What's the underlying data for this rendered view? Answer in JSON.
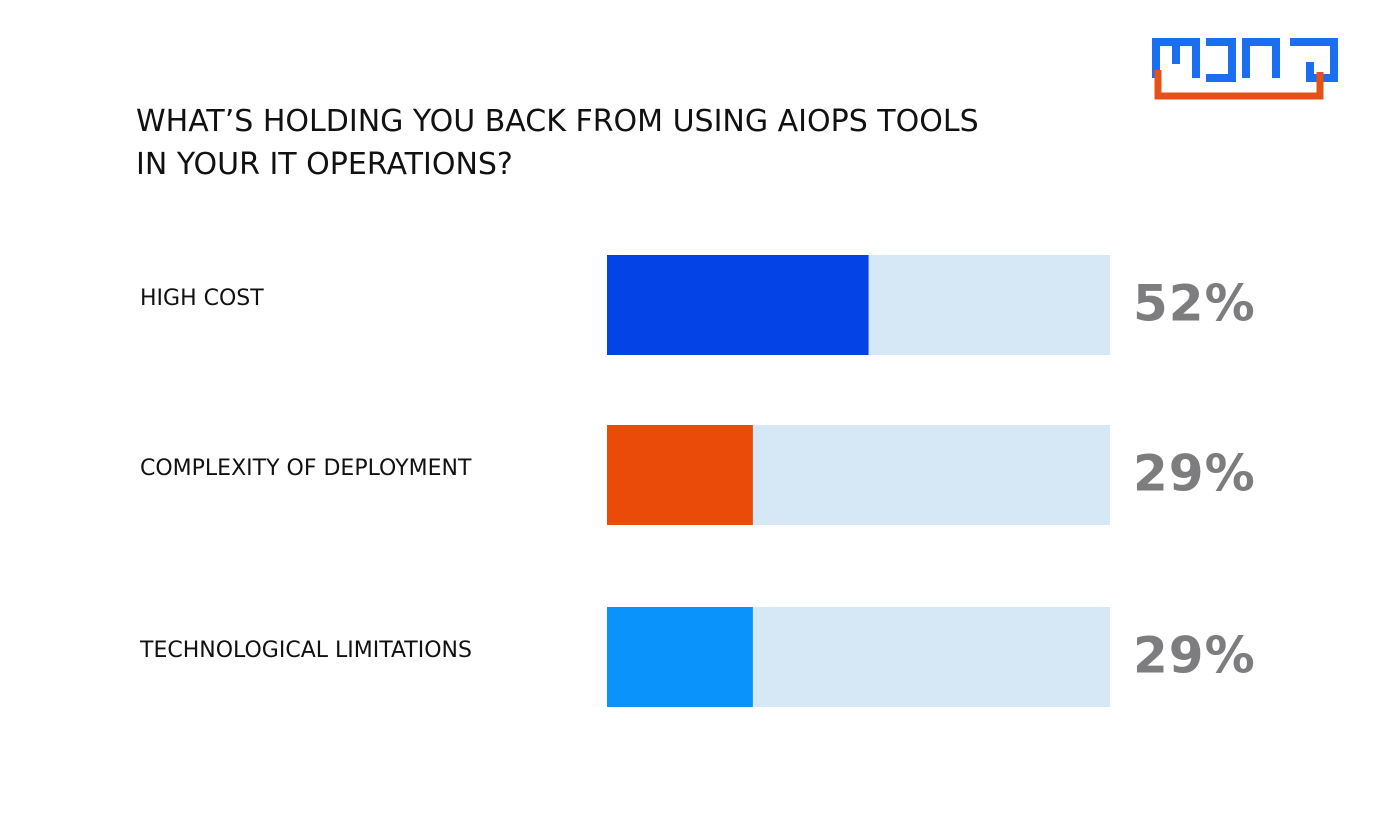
{
  "title_lines": [
    "WHAT’S HOLDING YOU BACK FROM USING AIOPS TOOLS",
    "IN YOUR IT OPERATIONS?"
  ],
  "logo": {
    "text": "MONO",
    "color_primary": "#1a6ef0",
    "color_accent": "#e8501a"
  },
  "colors": {
    "track": "#d6e7f5",
    "value_text": "#7d7d80"
  },
  "chart_data": {
    "type": "bar",
    "orientation": "horizontal",
    "title": "WHAT’S HOLDING YOU BACK FROM USING AIOPS TOOLS IN YOUR IT OPERATIONS?",
    "categories": [
      "HIGH COST",
      "COMPLEXITY OF DEPLOYMENT",
      "TECHNOLOGICAL LIMITATIONS"
    ],
    "values": [
      52,
      29,
      29
    ],
    "value_labels": [
      "52%",
      "29%",
      "29%"
    ],
    "bar_colors": [
      "#0444e6",
      "#ea4b08",
      "#0a93fb"
    ],
    "xlim": [
      0,
      100
    ],
    "grid": false,
    "legend": "none"
  }
}
